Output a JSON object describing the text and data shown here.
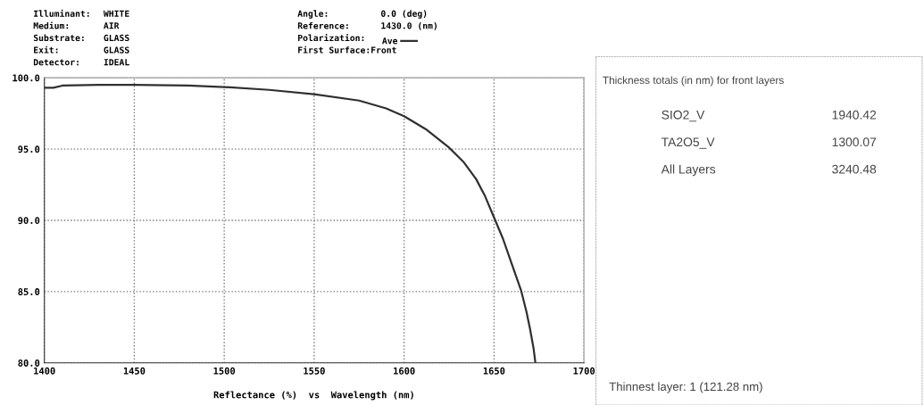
{
  "chart_data": [
    {
      "type": "line",
      "xlabel": "Reflectance (%)  vs  Wavelength (nm)",
      "annotations": [
        "Illuminant:",
        "WHITE",
        "Medium:",
        "AIR",
        "Substrate:",
        "GLASS",
        "Exit:",
        "GLASS",
        "Detector:",
        "IDEAL",
        "Angle:",
        "0.0 (deg)",
        "Reference:",
        "1430.0 (nm)",
        "Polarization:",
        "First Surface:Front"
      ],
      "series": [
        {
          "name": "Ave",
          "color": "#303030",
          "x": [
            1400,
            1405,
            1410,
            1430,
            1450,
            1480,
            1500,
            1525,
            1550,
            1575,
            1590,
            1600,
            1612,
            1625,
            1633,
            1640,
            1645,
            1650,
            1655,
            1660,
            1665,
            1668,
            1670,
            1672,
            1673
          ],
          "values": [
            99.3,
            99.3,
            99.45,
            99.5,
            99.5,
            99.45,
            99.35,
            99.15,
            98.85,
            98.4,
            97.85,
            97.3,
            96.4,
            95.1,
            94.1,
            92.9,
            91.7,
            90.2,
            88.7,
            86.9,
            85.1,
            83.6,
            82.4,
            81.0,
            80.0
          ]
        }
      ],
      "xlim": [
        1400,
        1700
      ],
      "xticks": [
        1400,
        1450,
        1500,
        1550,
        1600,
        1650,
        1700
      ],
      "ylim": [
        80,
        100
      ],
      "yticks": [
        {
          "value": 80,
          "label": "80.0"
        },
        {
          "value": 85,
          "label": "85.0"
        },
        {
          "value": 90,
          "label": "90.0"
        },
        {
          "value": 95,
          "label": "95.0"
        },
        {
          "value": 100,
          "label": "100.0"
        }
      ],
      "grid": true,
      "legend": "top",
      "line_style": "solid",
      "marker": "none"
    },
    {
      "type": "other",
      "annotations": [
        "Thickness totals (in nm) for front layers",
        "SIO2_V",
        "1940.42",
        "TA2O5_V",
        "1300.07",
        "All Layers",
        "3240.48",
        "Thinnest layer: 1 (121.28 nm)"
      ]
    }
  ]
}
